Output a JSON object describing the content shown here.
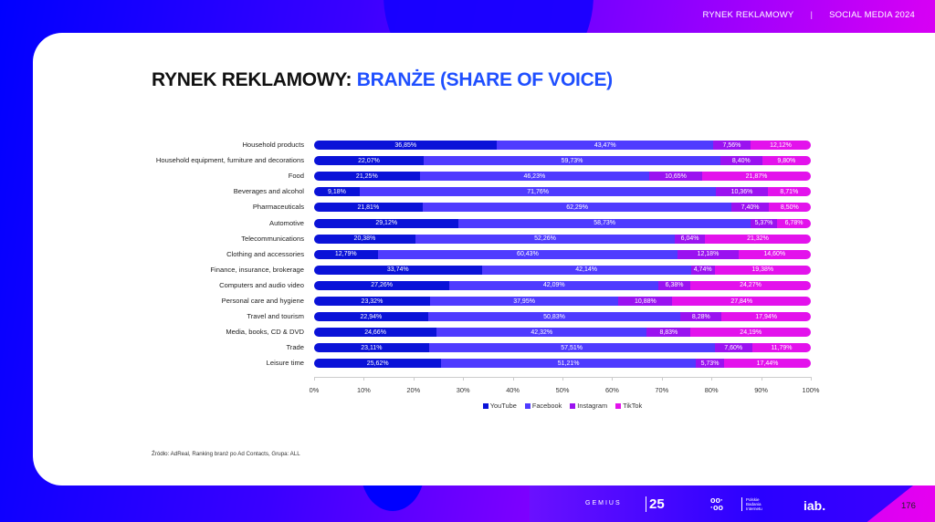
{
  "header": {
    "nav": [
      "RYNEK REKLAMOWY",
      "SOCIAL MEDIA 2024"
    ],
    "title_part1": "RYNEK REKLAMOWY:",
    "title_part2": "BRANŻE (SHARE OF VOICE)"
  },
  "colors": {
    "youtube": "#0a12d8",
    "facebook": "#4f3bff",
    "instagram": "#9a12f0",
    "tiktok": "#e312ec",
    "title_accent": "#1f4fff"
  },
  "chart_data": {
    "type": "bar",
    "orientation": "horizontal",
    "stacked": true,
    "normalized": true,
    "title": "RYNEK REKLAMOWY: BRANŻE (SHARE OF VOICE)",
    "xlabel": "",
    "ylabel": "",
    "xlim": [
      0,
      100
    ],
    "x_ticks": [
      "0%",
      "10%",
      "20%",
      "30%",
      "40%",
      "50%",
      "60%",
      "70%",
      "80%",
      "90%",
      "100%"
    ],
    "legend_position": "bottom",
    "categories": [
      "Household products",
      "Household equipment, furniture and decorations",
      "Food",
      "Beverages and alcohol",
      "Pharmaceuticals",
      "Automotive",
      "Telecommunications",
      "Clothing and accessories",
      "Finance, insurance, brokerage",
      "Computers and audio video",
      "Personal care and hygiene",
      "Travel and tourism",
      "Media, books, CD & DVD",
      "Trade",
      "Leisure time"
    ],
    "series": [
      {
        "name": "YouTube",
        "values": [
          36.85,
          22.07,
          21.25,
          9.18,
          21.81,
          29.12,
          20.38,
          12.79,
          33.74,
          27.26,
          23.32,
          22.94,
          24.66,
          23.11,
          25.62
        ]
      },
      {
        "name": "Facebook",
        "values": [
          43.47,
          59.73,
          46.23,
          71.76,
          62.29,
          58.73,
          52.26,
          60.43,
          42.14,
          42.09,
          37.95,
          50.83,
          42.32,
          57.51,
          51.21
        ]
      },
      {
        "name": "Instagram",
        "values": [
          7.56,
          8.4,
          10.65,
          10.36,
          7.4,
          5.37,
          6.04,
          12.18,
          4.74,
          6.38,
          10.88,
          8.28,
          8.83,
          7.6,
          5.73
        ]
      },
      {
        "name": "TikTok",
        "values": [
          12.12,
          9.8,
          21.87,
          8.71,
          8.5,
          6.78,
          21.32,
          14.6,
          19.38,
          24.27,
          27.84,
          17.94,
          24.19,
          11.79,
          17.44
        ]
      }
    ],
    "data_labels": [
      [
        "36,85%",
        "43,47%",
        "7,56%",
        "12,12%"
      ],
      [
        "22,07%",
        "59,73%",
        "8,40%",
        "9,80%"
      ],
      [
        "21,25%",
        "46,23%",
        "10,65%",
        "21,87%"
      ],
      [
        "9,18%",
        "71,76%",
        "10,36%",
        "8,71%"
      ],
      [
        "21,81%",
        "62,29%",
        "7,40%",
        "8,50%"
      ],
      [
        "29,12%",
        "58,73%",
        "5,37%",
        "6,78%"
      ],
      [
        "20,38%",
        "52,26%",
        "6,04%",
        "21,32%"
      ],
      [
        "12,79%",
        "60,43%",
        "12,18%",
        "14,60%"
      ],
      [
        "33,74%",
        "42,14%",
        "4,74%",
        "19,38%"
      ],
      [
        "27,26%",
        "42,09%",
        "6,38%",
        "24,27%"
      ],
      [
        "23,32%",
        "37,95%",
        "10,88%",
        "27,84%"
      ],
      [
        "22,94%",
        "50,83%",
        "8,28%",
        "17,94%"
      ],
      [
        "24,66%",
        "42,32%",
        "8,83%",
        "24,19%"
      ],
      [
        "23,11%",
        "57,51%",
        "7,60%",
        "11,79%"
      ],
      [
        "25,62%",
        "51,21%",
        "5,73%",
        "17,44%"
      ]
    ]
  },
  "source": "Źródło: AdReal, Ranking branż po Ad Contacts, Grupa: ALL",
  "footer": {
    "logos": {
      "gemius": "GEMIUS",
      "gemius_years": "25",
      "pbi_dots": "oo·\n·oo",
      "pbi_text": "Polskie\nBadania\nInternetu",
      "iab": "iab."
    },
    "page_number": "176"
  }
}
